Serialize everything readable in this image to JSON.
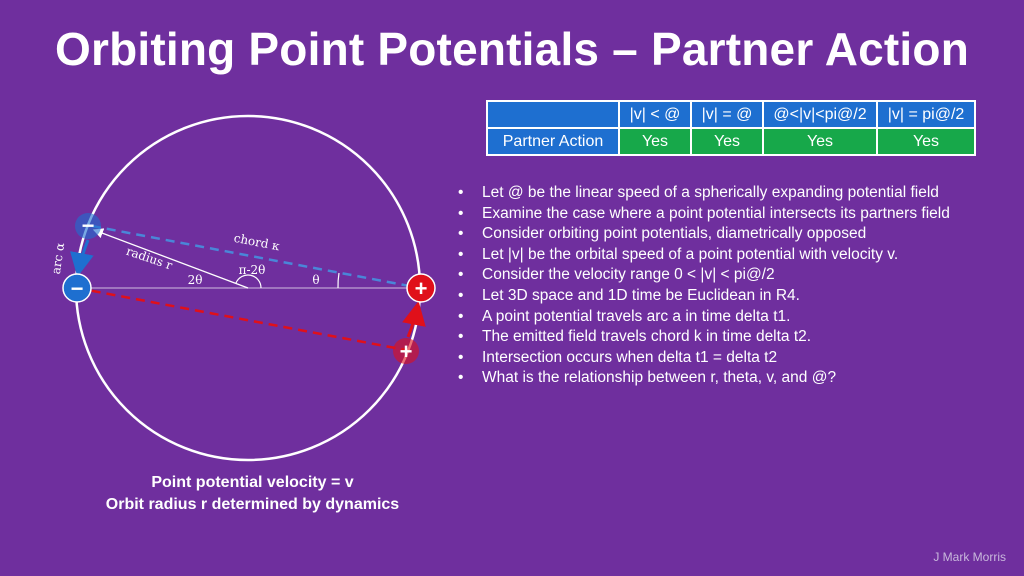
{
  "title": "Orbiting Point Potentials – Partner Action",
  "table": {
    "headers": [
      "|v| < @",
      "|v| = @",
      "@<|v|<pi@/2",
      "|v| = pi@/2"
    ],
    "row_label": "Partner Action",
    "row_values": [
      "Yes",
      "Yes",
      "Yes",
      "Yes"
    ]
  },
  "bullets": [
    "Let @ be the linear speed of a spherically expanding potential field",
    "Examine the case where a point potential intersects its partners field",
    "Consider orbiting point potentials, diametrically opposed",
    "Let |v| be the orbital speed of a point potential with velocity v.",
    "Consider the velocity range 0 < |v| < pi@/2",
    "Let 3D space and 1D time be Euclidean in R4.",
    "A point potential travels arc a in time delta t1.",
    "The emitted field travels chord k in time delta t2.",
    "Intersection occurs when delta t1 = delta t2",
    "What is the relationship between r, theta, v, and @?"
  ],
  "diagram": {
    "labels": {
      "arc": "arc α",
      "radius": "radius r",
      "chord": "chord κ",
      "two_theta": "2θ",
      "pi_minus_two_theta": "π-2θ",
      "theta": "θ"
    },
    "minus_symbol": "−",
    "plus_symbol": "+",
    "colors": {
      "circle": "#ffffff",
      "negative": "#1e6fd0",
      "positive": "#e0101a",
      "chord_dashed": "#4a86d8",
      "red_dashed": "#e0101a"
    }
  },
  "caption": {
    "line1": "Point potential velocity = v",
    "line2": "Orbit radius r determined by dynamics"
  },
  "author": "J Mark Morris"
}
